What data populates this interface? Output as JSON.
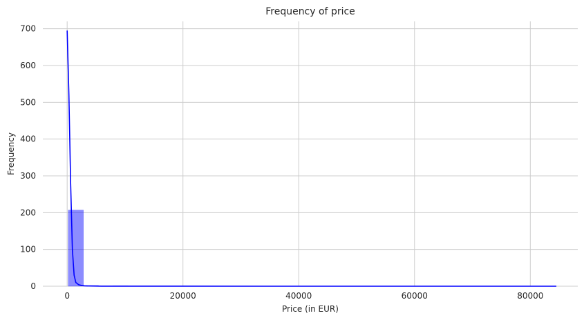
{
  "chart_data": {
    "type": "bar",
    "title": "Frequency of price",
    "xlabel": "Price (in EUR)",
    "ylabel": "Frequency",
    "xlim": [
      -4200,
      88200
    ],
    "ylim": [
      0,
      720
    ],
    "xticks": [
      0,
      20000,
      40000,
      60000,
      80000
    ],
    "yticks": [
      0,
      100,
      200,
      300,
      400,
      500,
      600,
      700
    ],
    "grid": true,
    "bar_color": "#0000ff",
    "line_color": "#0000ff",
    "bins": [
      {
        "x0": 200,
        "x1": 2800,
        "count": 207
      },
      {
        "x0": 2800,
        "x1": 5400,
        "count": 2
      },
      {
        "x0": 7900,
        "x1": 10500,
        "count": 1
      }
    ],
    "kde": {
      "x": [
        0,
        300,
        600,
        900,
        1200,
        1500,
        2000,
        2500,
        3000,
        4000,
        6000,
        10000,
        20000,
        40000,
        60000,
        84500
      ],
      "y": [
        695,
        520,
        280,
        100,
        30,
        10,
        4,
        2,
        1,
        0.5,
        0.2,
        0.1,
        0.05,
        0,
        0,
        0
      ]
    }
  }
}
